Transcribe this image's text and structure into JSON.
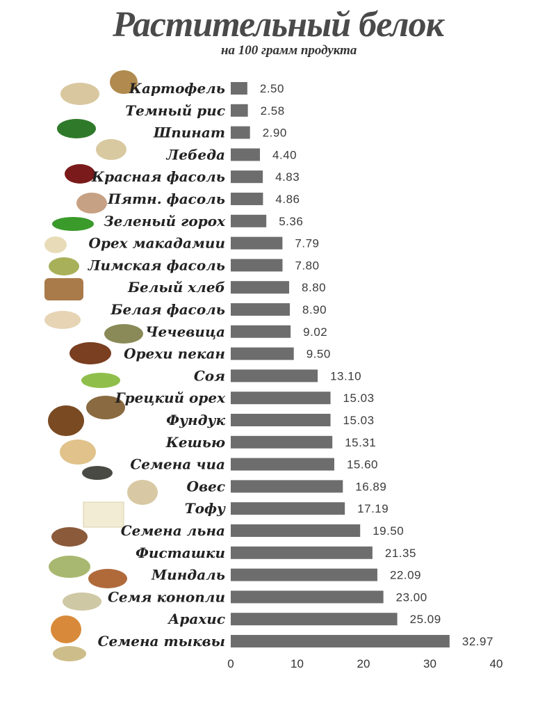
{
  "chart_data": {
    "type": "bar",
    "orientation": "horizontal",
    "title": "Растительный белок",
    "subtitle": "на 100 грамм продукта",
    "categories": [
      "Картофель",
      "Темный рис",
      "Шпинат",
      "Лебеда",
      "Красная фасоль",
      "Пятн. фасоль",
      "Зеленый горох",
      "Орех  макадамии",
      "Лимская фасоль",
      "Белый хлеб",
      "Белая фасоль",
      "Чечевица",
      "Орехи пекан",
      "Соя",
      "Грецкий орех",
      "Фундук",
      "Кешью",
      "Семена чиа",
      "Овес",
      "Тофу",
      "Семена льна",
      "Фисташки",
      "Миндаль",
      "Семя конопли",
      "Арахис",
      "Семена тыквы"
    ],
    "values": [
      2.5,
      2.58,
      2.9,
      4.4,
      4.83,
      4.86,
      5.36,
      7.79,
      7.8,
      8.8,
      8.9,
      9.02,
      9.5,
      13.1,
      15.03,
      15.03,
      15.31,
      15.6,
      16.89,
      17.19,
      19.5,
      21.35,
      22.09,
      23.0,
      25.09,
      32.97
    ],
    "value_labels": [
      "2.50",
      "2.58",
      "2.90",
      "4.40",
      "4.83",
      "4.86",
      "5.36",
      "7.79",
      "7.80",
      "8.80",
      "8.90",
      "9.02",
      "9.50",
      "13.10",
      "15.03",
      "15.03",
      "15.31",
      "15.60",
      "16.89",
      "17.19",
      "19.50",
      "21.35",
      "22.09",
      "23.00",
      "25.09",
      "32.97"
    ],
    "xlim": [
      0,
      40
    ],
    "xticks": [
      "0",
      "10",
      "20",
      "30",
      "40"
    ],
    "grid": false,
    "bar_color": "#6d6d6d"
  }
}
